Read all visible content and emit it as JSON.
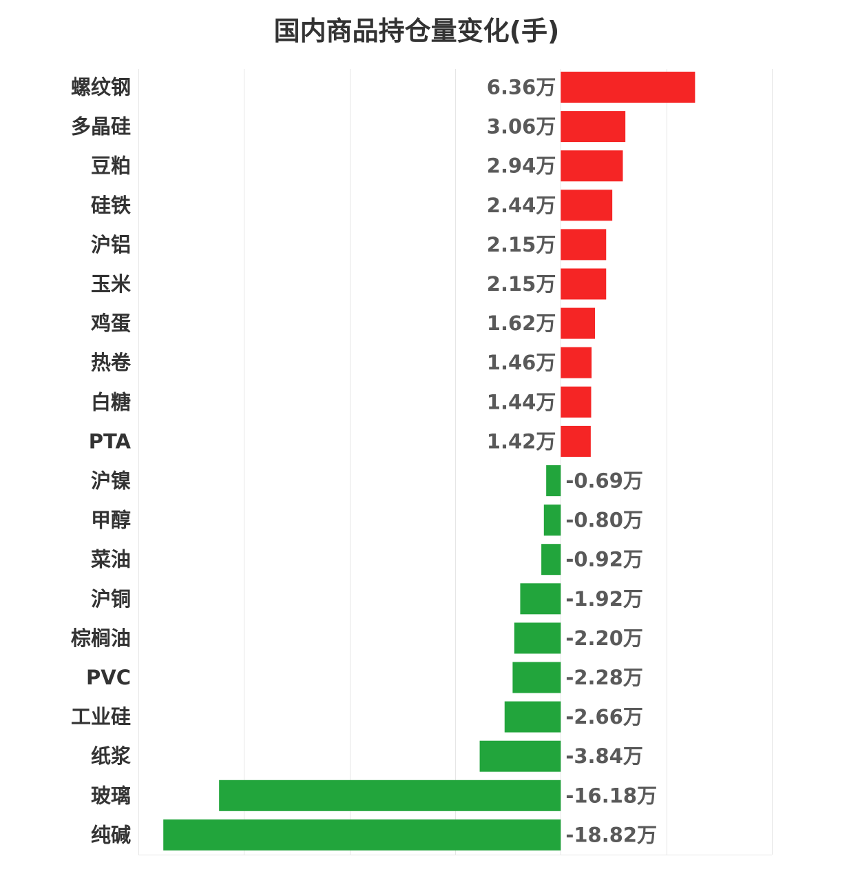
{
  "chart_data": {
    "type": "bar",
    "orientation": "horizontal",
    "title": "国内商品持仓量变化(手)",
    "unit_suffix": "万",
    "categories": [
      "螺纹钢",
      "多晶硅",
      "豆粕",
      "硅铁",
      "沪铝",
      "玉米",
      "鸡蛋",
      "热卷",
      "白糖",
      "PTA",
      "沪镍",
      "甲醇",
      "菜油",
      "沪铜",
      "棕榈油",
      "PVC",
      "工业硅",
      "纸浆",
      "玻璃",
      "纯碱"
    ],
    "values": [
      6.36,
      3.06,
      2.94,
      2.44,
      2.15,
      2.15,
      1.62,
      1.46,
      1.44,
      1.42,
      -0.69,
      -0.8,
      -0.92,
      -1.92,
      -2.2,
      -2.28,
      -2.66,
      -3.84,
      -16.18,
      -18.82
    ],
    "value_labels": [
      "6.36万",
      "3.06万",
      "2.94万",
      "2.44万",
      "2.15万",
      "2.15万",
      "1.62万",
      "1.46万",
      "1.44万",
      "1.42万",
      "-0.69万",
      "-0.80万",
      "-0.92万",
      "-1.92万",
      "-2.20万",
      "-2.28万",
      "-2.66万",
      "-3.84万",
      "-16.18万",
      "-18.82万"
    ],
    "xlim": [
      -20,
      10
    ],
    "grid": true,
    "colors": {
      "positive": "#f52525",
      "negative": "#22a53c",
      "grid": "#e6e6e6"
    }
  }
}
